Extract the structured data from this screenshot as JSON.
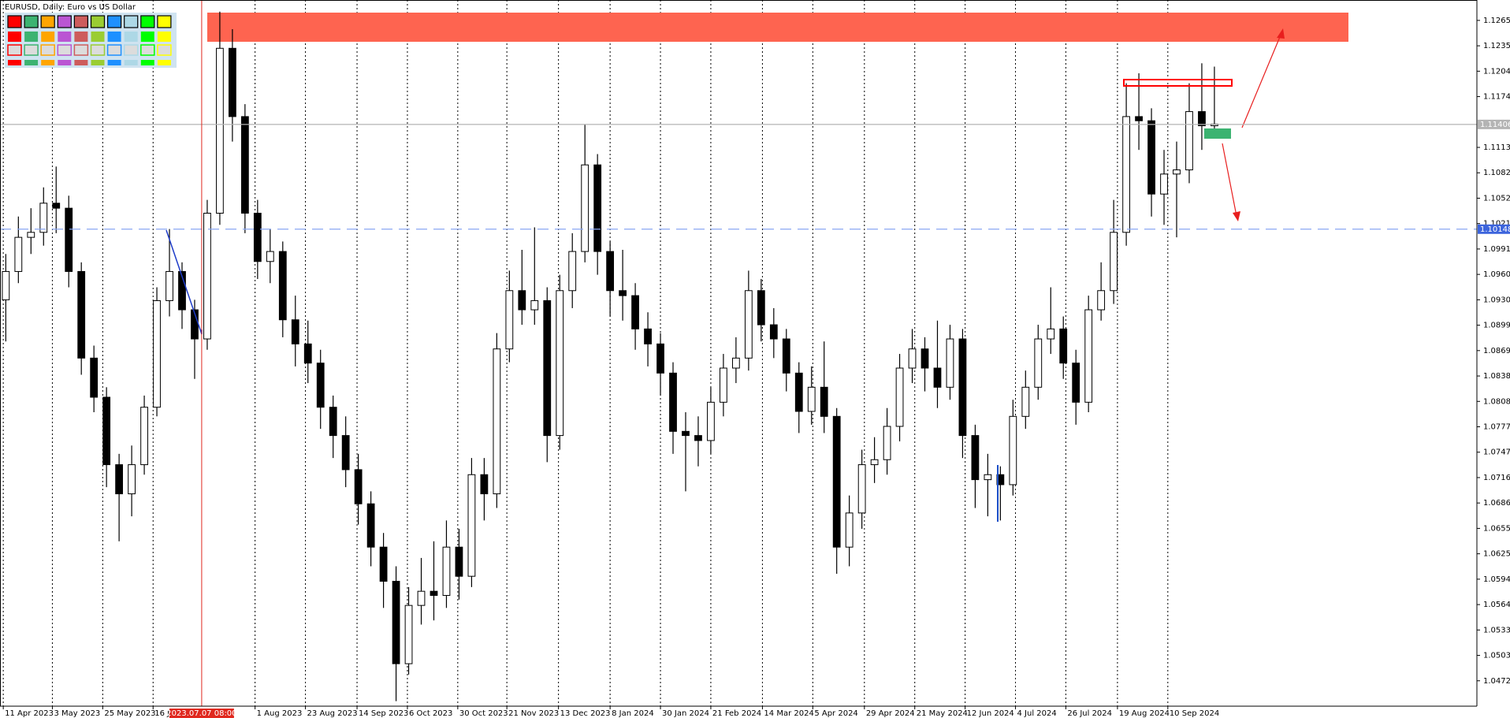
{
  "chart_data": {
    "type": "candlestick",
    "title": "EURUSD, Daily:  Euro vs US Dollar",
    "open": [
      1.093,
      1.0964,
      1.1005,
      1.1011,
      1.1046,
      1.104,
      1.0964,
      1.086,
      1.0813,
      1.0732,
      1.0697,
      1.0732,
      1.0801,
      1.0929,
      1.0964,
      1.0918,
      1.0883,
      1.1034,
      1.1232,
      1.115,
      1.1034,
      1.0976,
      1.0988,
      1.0906,
      1.0877,
      1.0854,
      1.0801,
      1.0767,
      1.0726,
      1.0685,
      1.0633,
      1.0592,
      1.0493,
      1.0563,
      1.058,
      1.0575,
      1.0633,
      1.0598,
      1.072,
      1.0697,
      1.0871,
      1.0941,
      1.0918,
      1.0929,
      1.0767,
      1.0941,
      1.0988,
      1.1092,
      1.0988,
      1.0941,
      1.0935,
      1.0895,
      1.0877,
      1.0842,
      1.0772,
      1.0767,
      1.0761,
      1.0807,
      1.0848,
      1.086,
      1.0941,
      1.09,
      1.0883,
      1.0842,
      1.0796,
      1.0825,
      1.079,
      1.0633,
      1.0674,
      1.0732,
      1.0738,
      1.0778,
      1.0848,
      1.0871,
      1.0848,
      1.0825,
      1.0883,
      1.0767,
      1.0714,
      1.072,
      1.0708,
      1.079,
      1.0825,
      1.0883,
      1.0895,
      1.0854,
      1.0807,
      1.0918,
      1.0941,
      1.1011,
      1.115,
      1.1145,
      1.1057,
      1.1081,
      1.1086,
      1.1156,
      1.1139
    ],
    "high": [
      1.0985,
      1.103,
      1.104,
      1.1065,
      1.109,
      1.1055,
      1.0975,
      1.0875,
      1.0825,
      1.0745,
      1.0755,
      1.0815,
      1.0945,
      1.1015,
      1.0975,
      1.093,
      1.105,
      1.1276,
      1.1255,
      1.1165,
      1.105,
      1.1015,
      1.1,
      1.0935,
      1.0905,
      1.087,
      1.0815,
      1.079,
      1.0745,
      1.07,
      1.065,
      1.061,
      1.0585,
      1.062,
      1.064,
      1.0665,
      1.0655,
      1.074,
      1.074,
      1.089,
      1.0965,
      1.099,
      1.1017,
      1.0945,
      1.096,
      1.101,
      1.114,
      1.1105,
      1.1,
      1.099,
      1.095,
      1.0915,
      1.089,
      1.0855,
      1.0795,
      1.079,
      1.0825,
      1.0865,
      1.0885,
      1.0965,
      1.0955,
      1.092,
      1.0895,
      1.0855,
      1.085,
      1.088,
      1.08,
      1.0695,
      1.075,
      1.0765,
      1.08,
      1.0865,
      1.0895,
      1.0885,
      1.0905,
      1.09,
      1.0895,
      1.078,
      1.0745,
      1.073,
      1.081,
      1.0845,
      1.09,
      1.0945,
      1.091,
      1.087,
      1.0935,
      1.0975,
      1.105,
      1.119,
      1.1202,
      1.116,
      1.111,
      1.112,
      1.119,
      1.1214,
      1.121
    ],
    "low": [
      1.088,
      1.095,
      1.0985,
      1.0995,
      1.101,
      1.0945,
      1.084,
      1.0795,
      1.0705,
      1.064,
      1.067,
      1.072,
      1.079,
      1.091,
      1.0895,
      1.0835,
      1.087,
      1.102,
      1.112,
      1.101,
      1.0955,
      1.095,
      1.0885,
      1.085,
      1.083,
      1.0775,
      1.074,
      1.0705,
      1.066,
      1.061,
      1.056,
      1.0448,
      1.048,
      1.054,
      1.0545,
      1.056,
      1.057,
      1.0585,
      1.0665,
      1.068,
      1.0855,
      1.09,
      1.09,
      1.0735,
      1.075,
      1.092,
      1.0975,
      1.096,
      1.091,
      1.0905,
      1.087,
      1.085,
      1.0815,
      1.0745,
      1.07,
      1.073,
      1.0745,
      1.079,
      1.083,
      1.0845,
      1.088,
      1.086,
      1.082,
      1.077,
      1.078,
      1.077,
      1.0601,
      1.061,
      1.0655,
      1.071,
      1.072,
      1.076,
      1.083,
      1.082,
      1.08,
      1.081,
      1.074,
      1.068,
      1.067,
      1.0665,
      1.0695,
      1.0775,
      1.081,
      1.0865,
      1.0835,
      1.078,
      1.0795,
      1.0905,
      1.0925,
      1.0995,
      1.111,
      1.103,
      1.102,
      1.1005,
      1.107,
      1.111,
      1.1125
    ],
    "close": [
      1.0964,
      1.1005,
      1.1011,
      1.1046,
      1.104,
      1.0964,
      1.086,
      1.0813,
      1.0732,
      1.0697,
      1.0732,
      1.0801,
      1.0929,
      1.0964,
      1.0918,
      1.0883,
      1.1034,
      1.1232,
      1.115,
      1.1034,
      1.0976,
      1.0988,
      1.0906,
      1.0877,
      1.0854,
      1.0801,
      1.0767,
      1.0726,
      1.0685,
      1.0633,
      1.0592,
      1.0493,
      1.0563,
      1.058,
      1.0575,
      1.0633,
      1.0598,
      1.072,
      1.0697,
      1.0871,
      1.0941,
      1.0918,
      1.0929,
      1.0767,
      1.0941,
      1.0988,
      1.1092,
      1.0988,
      1.0941,
      1.0935,
      1.0895,
      1.0877,
      1.0842,
      1.0772,
      1.0767,
      1.0761,
      1.0807,
      1.0848,
      1.086,
      1.0941,
      1.09,
      1.0883,
      1.0842,
      1.0796,
      1.0825,
      1.079,
      1.0633,
      1.0674,
      1.0732,
      1.0738,
      1.0778,
      1.0848,
      1.0871,
      1.0848,
      1.0825,
      1.0883,
      1.0767,
      1.0714,
      1.072,
      1.0708,
      1.079,
      1.0825,
      1.0883,
      1.0895,
      1.0854,
      1.0807,
      1.0918,
      1.0941,
      1.1011,
      1.115,
      1.1145,
      1.1057,
      1.1081,
      1.1086,
      1.1156,
      1.1139,
      1.1141
    ],
    "up_color": "#ffffff",
    "down_color": "#000000",
    "edge_color": "#000000",
    "xlim": [
      -0.46,
      116.85
    ],
    "xticks": [
      {
        "value": -0.2,
        "label": "11 Apr 2023"
      },
      {
        "value": 3.7,
        "label": "3 May 2023"
      },
      {
        "value": 7.7,
        "label": "25 May 2023"
      },
      {
        "value": 11.7,
        "label": "16 Jun 2023"
      },
      {
        "value": 19.8,
        "label": "1 Aug 2023"
      },
      {
        "value": 23.8,
        "label": "23 Aug 2023"
      },
      {
        "value": 27.9,
        "label": "14 Sep 2023"
      },
      {
        "value": 31.9,
        "label": "6 Oct 2023"
      },
      {
        "value": 35.9,
        "label": "30 Oct 2023"
      },
      {
        "value": 39.8,
        "label": "21 Nov 2023"
      },
      {
        "value": 43.9,
        "label": "13 Dec 2023"
      },
      {
        "value": 48,
        "label": "8 Jan 2024"
      },
      {
        "value": 52,
        "label": "30 Jan 2024"
      },
      {
        "value": 56,
        "label": "21 Feb 2024"
      },
      {
        "value": 60.1,
        "label": "14 Mar 2024"
      },
      {
        "value": 64.1,
        "label": "5 Apr 2024"
      },
      {
        "value": 68.2,
        "label": "29 Apr 2024"
      },
      {
        "value": 72.2,
        "label": "21 May 2024"
      },
      {
        "value": 76.2,
        "label": "12 Jun 2024"
      },
      {
        "value": 80.2,
        "label": "4 Jul 2024"
      },
      {
        "value": 84.2,
        "label": "26 Jul 2024"
      },
      {
        "value": 88.3,
        "label": "19 Aug 2024"
      },
      {
        "value": 92.3,
        "label": "10 Sep 2024"
      }
    ],
    "ylim": [
      1.0442,
      1.129
    ],
    "yticks": [
      1.12655,
      {
        "value": 1.1235,
        "label": "1.12350"
      },
      1.12045,
      {
        "value": 1.1174,
        "label": "1.11740"
      },
      {
        "value": 1.1113,
        "label": "1.11130"
      },
      1.10825,
      {
        "value": 1.1052,
        "label": "1.10520"
      },
      1.10215,
      {
        "value": 1.0991,
        "label": "1.09910"
      },
      1.09605,
      {
        "value": 1.093,
        "label": "1.09300"
      },
      1.08995,
      {
        "value": 1.0869,
        "label": "1.08690"
      },
      1.08385,
      {
        "value": 1.0808,
        "label": "1.08080"
      },
      1.07775,
      {
        "value": 1.0747,
        "label": "1.07470"
      },
      1.07165,
      {
        "value": 1.0686,
        "label": "1.06860"
      },
      1.06555,
      {
        "value": 1.0625,
        "label": "1.06250"
      },
      1.05945,
      {
        "value": 1.0564,
        "label": "1.05640"
      },
      1.05335,
      {
        "value": 1.0503,
        "label": "1.05030"
      },
      1.04725
    ],
    "grid": "x",
    "hlines": [
      {
        "value": 1.11406,
        "color": "#b4b4b4",
        "label_color": "#b4b4b4",
        "dash": false
      },
      {
        "value": 1.10148,
        "color": "#8aa6f2",
        "label_color": "#3c64dc",
        "dash": true
      }
    ],
    "cursor": {
      "x": 15.56,
      "label": "2023.07.07 08:00",
      "color": "#e0281e"
    }
  }
}
